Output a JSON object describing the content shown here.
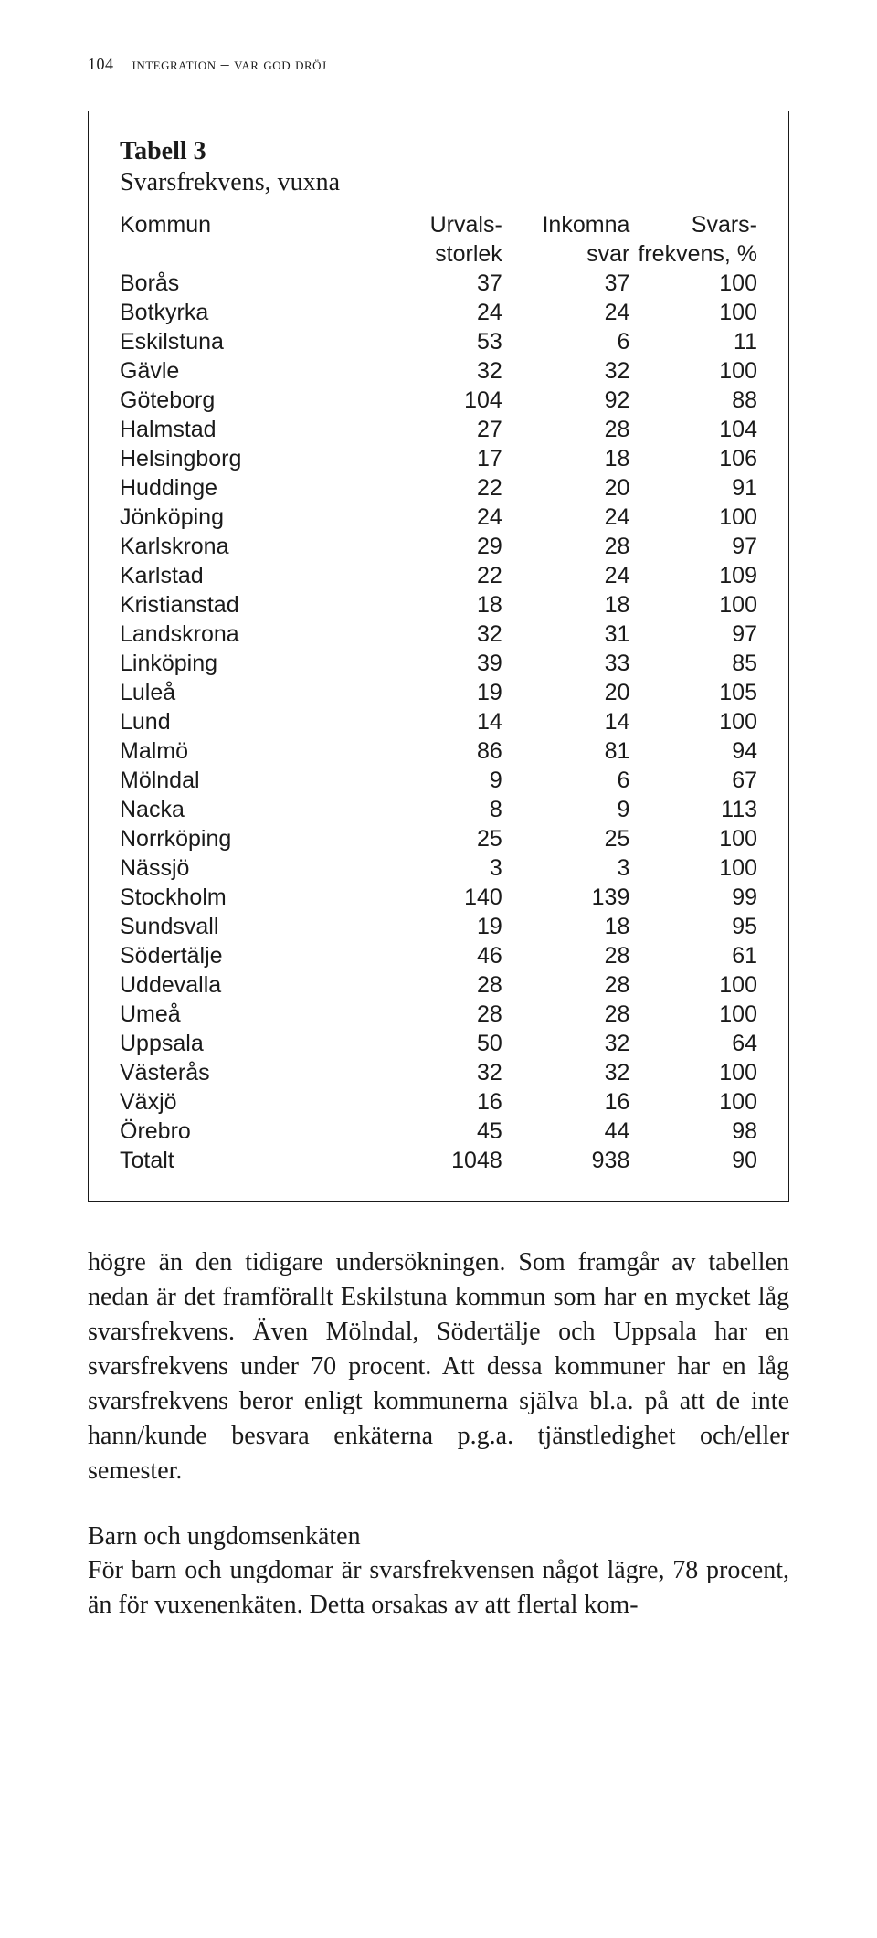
{
  "running_head": {
    "page_number": "104",
    "text": "integration – var god dröj"
  },
  "table": {
    "title": "Tabell 3",
    "subtitle": "Svarsfrekvens, vuxna",
    "columns": {
      "kommun": "Kommun",
      "c1_top": "Urvals-",
      "c1_bot": "storlek",
      "c2_top": "Inkomna",
      "c2_bot": "svar",
      "c3_top": "Svars-",
      "c3_bot": "frekvens, %"
    },
    "rows": [
      {
        "k": "Borås",
        "a": "37",
        "b": "37",
        "c": "100"
      },
      {
        "k": "Botkyrka",
        "a": "24",
        "b": "24",
        "c": "100"
      },
      {
        "k": "Eskilstuna",
        "a": "53",
        "b": "6",
        "c": "11"
      },
      {
        "k": "Gävle",
        "a": "32",
        "b": "32",
        "c": "100"
      },
      {
        "k": "Göteborg",
        "a": "104",
        "b": "92",
        "c": "88"
      },
      {
        "k": "Halmstad",
        "a": "27",
        "b": "28",
        "c": "104"
      },
      {
        "k": "Helsingborg",
        "a": "17",
        "b": "18",
        "c": "106"
      },
      {
        "k": "Huddinge",
        "a": "22",
        "b": "20",
        "c": "91"
      },
      {
        "k": "Jönköping",
        "a": "24",
        "b": "24",
        "c": "100"
      },
      {
        "k": "Karlskrona",
        "a": "29",
        "b": "28",
        "c": "97"
      },
      {
        "k": "Karlstad",
        "a": "22",
        "b": "24",
        "c": "109"
      },
      {
        "k": "Kristianstad",
        "a": "18",
        "b": "18",
        "c": "100"
      },
      {
        "k": "Landskrona",
        "a": "32",
        "b": "31",
        "c": "97"
      },
      {
        "k": "Linköping",
        "a": "39",
        "b": "33",
        "c": "85"
      },
      {
        "k": "Luleå",
        "a": "19",
        "b": "20",
        "c": "105"
      },
      {
        "k": "Lund",
        "a": "14",
        "b": "14",
        "c": "100"
      },
      {
        "k": "Malmö",
        "a": "86",
        "b": "81",
        "c": "94"
      },
      {
        "k": "Mölndal",
        "a": "9",
        "b": "6",
        "c": "67"
      },
      {
        "k": "Nacka",
        "a": "8",
        "b": "9",
        "c": "113"
      },
      {
        "k": "Norrköping",
        "a": "25",
        "b": "25",
        "c": "100"
      },
      {
        "k": "Nässjö",
        "a": "3",
        "b": "3",
        "c": "100"
      },
      {
        "k": "Stockholm",
        "a": "140",
        "b": "139",
        "c": "99"
      },
      {
        "k": "Sundsvall",
        "a": "19",
        "b": "18",
        "c": "95"
      },
      {
        "k": "Södertälje",
        "a": "46",
        "b": "28",
        "c": "61"
      },
      {
        "k": "Uddevalla",
        "a": "28",
        "b": "28",
        "c": "100"
      },
      {
        "k": "Umeå",
        "a": "28",
        "b": "28",
        "c": "100"
      },
      {
        "k": "Uppsala",
        "a": "50",
        "b": "32",
        "c": "64"
      },
      {
        "k": "Västerås",
        "a": "32",
        "b": "32",
        "c": "100"
      },
      {
        "k": "Växjö",
        "a": "16",
        "b": "16",
        "c": "100"
      },
      {
        "k": "Örebro",
        "a": "45",
        "b": "44",
        "c": "98"
      },
      {
        "k": "Totalt",
        "a": "1048",
        "b": "938",
        "c": "90"
      }
    ]
  },
  "paragraph1": "högre än den tidigare undersökningen. Som framgår av tabellen nedan är det framförallt Eskilstuna kommun som har en mycket låg svarsfrekvens. Även Mölndal, Södertälje och Uppsala har en svarsfrekvens under 70 procent. Att dessa kommuner har en låg svarsfrekvens beror enligt kommunerna själva bl.a. på att de inte hann/kunde besvara enkäterna p.g.a. tjänstledighet och/eller semester.",
  "section_heading": "Barn och ungdomsenkäten",
  "paragraph2": "För barn och ungdomar är svarsfrekvensen något lägre, 78 procent, än för vuxenenkäten. Detta orsakas av att flertal kom-"
}
